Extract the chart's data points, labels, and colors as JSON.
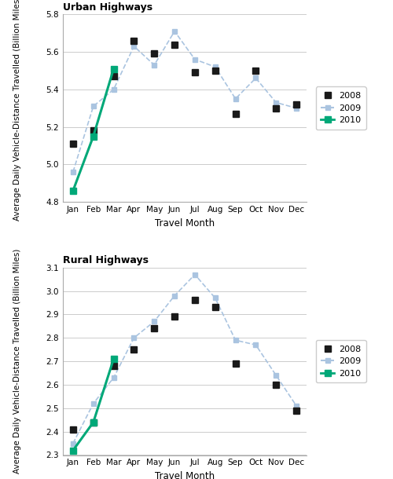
{
  "months": [
    "Jan",
    "Feb",
    "Mar",
    "Apr",
    "May",
    "Jun",
    "Jul",
    "Aug",
    "Sep",
    "Oct",
    "Nov",
    "Dec"
  ],
  "urban": {
    "title": "Urban Highways",
    "ylabel": "Average Daily Vehicle-Distance Travelled (Billion Miles)",
    "xlabel": "Travel Month",
    "ylim": [
      4.8,
      5.8
    ],
    "yticks": [
      4.8,
      5.0,
      5.2,
      5.4,
      5.6,
      5.8
    ],
    "data_2008": [
      5.11,
      5.18,
      5.47,
      5.66,
      5.59,
      5.64,
      5.49,
      5.5,
      5.27,
      5.5,
      5.3,
      5.32
    ],
    "data_2009": [
      4.96,
      5.31,
      5.4,
      5.63,
      5.53,
      5.71,
      5.56,
      5.52,
      5.35,
      5.46,
      5.33,
      5.3
    ],
    "data_2010": [
      4.86,
      5.15,
      5.51,
      null,
      null,
      null,
      null,
      null,
      null,
      null,
      null,
      null
    ],
    "data_2010_months": [
      0,
      1,
      2
    ]
  },
  "rural": {
    "title": "Rural Highways",
    "ylabel": "Average Daily Vehicle-Distance Travelled (Billion Miles)",
    "xlabel": "Travel Month",
    "ylim": [
      2.3,
      3.1
    ],
    "yticks": [
      2.3,
      2.4,
      2.5,
      2.6,
      2.7,
      2.8,
      2.9,
      3.0,
      3.1
    ],
    "data_2008": [
      2.41,
      2.44,
      2.68,
      2.75,
      2.84,
      2.89,
      2.96,
      2.93,
      2.69,
      null,
      2.6,
      2.49
    ],
    "data_2009": [
      2.35,
      2.52,
      2.63,
      2.8,
      2.87,
      2.98,
      3.07,
      2.97,
      2.79,
      2.77,
      2.64,
      2.51
    ],
    "data_2010": [
      2.32,
      2.44,
      2.71,
      null,
      null,
      null,
      null,
      null,
      null,
      null,
      null,
      null
    ],
    "data_2010_months": [
      0,
      1,
      2
    ]
  },
  "color_2008": "#1a1a1a",
  "color_2009": "#aac4e0",
  "color_2010": "#00a878",
  "legend_labels": [
    "2008",
    "2009",
    "2010"
  ]
}
